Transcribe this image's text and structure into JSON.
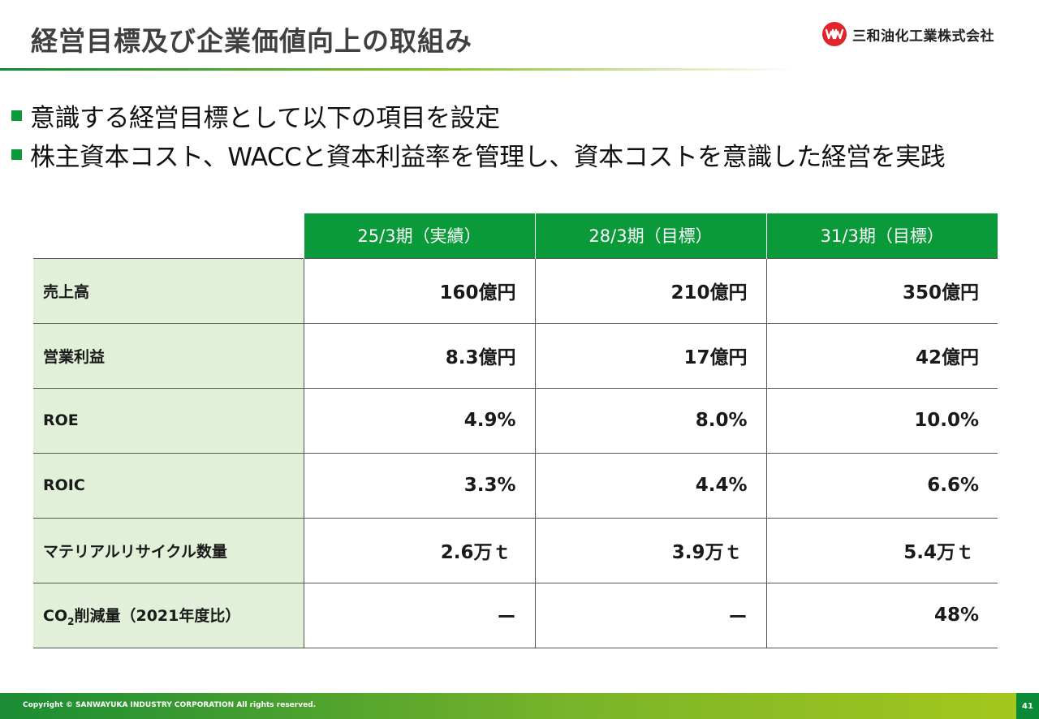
{
  "slide": {
    "title": "経営目標及び企業価値向上の取組み",
    "company": "三和油化工業株式会社",
    "colors": {
      "primary_green": "#0a9a3a",
      "label_bg": "#e2f0d9",
      "logo_red": "#e0262c"
    }
  },
  "bullets": [
    "意識する経営目標として以下の項目を設定",
    "株主資本コスト、WACCと資本利益率を管理し、資本コストを意識した経営を実践"
  ],
  "table": {
    "headers": [
      "25/3期（実績）",
      "28/3期（目標）",
      "31/3期（目標）"
    ],
    "rows": [
      {
        "label": "売上高",
        "values": [
          "160億円",
          "210億円",
          "350億円"
        ]
      },
      {
        "label": "営業利益",
        "values": [
          "8.3億円",
          "17億円",
          "42億円"
        ]
      },
      {
        "label": "ROE",
        "values": [
          "4.9%",
          "8.0%",
          "10.0%"
        ]
      },
      {
        "label": "ROIC",
        "values": [
          "3.3%",
          "4.4%",
          "6.6%"
        ]
      },
      {
        "label": "マテリアルリサイクル数量",
        "values": [
          "2.6万ｔ",
          "3.9万ｔ",
          "5.4万ｔ"
        ]
      },
      {
        "label_pre": "CO",
        "label_sub": "2",
        "label_post": "削減量（2021年度比）",
        "values": [
          "ー",
          "ー",
          "48%"
        ]
      }
    ]
  },
  "footer": {
    "copyright": "Copyright © SANWAYUKA INDUSTRY CORPORATION All rights reserved.",
    "page_number": "41"
  }
}
